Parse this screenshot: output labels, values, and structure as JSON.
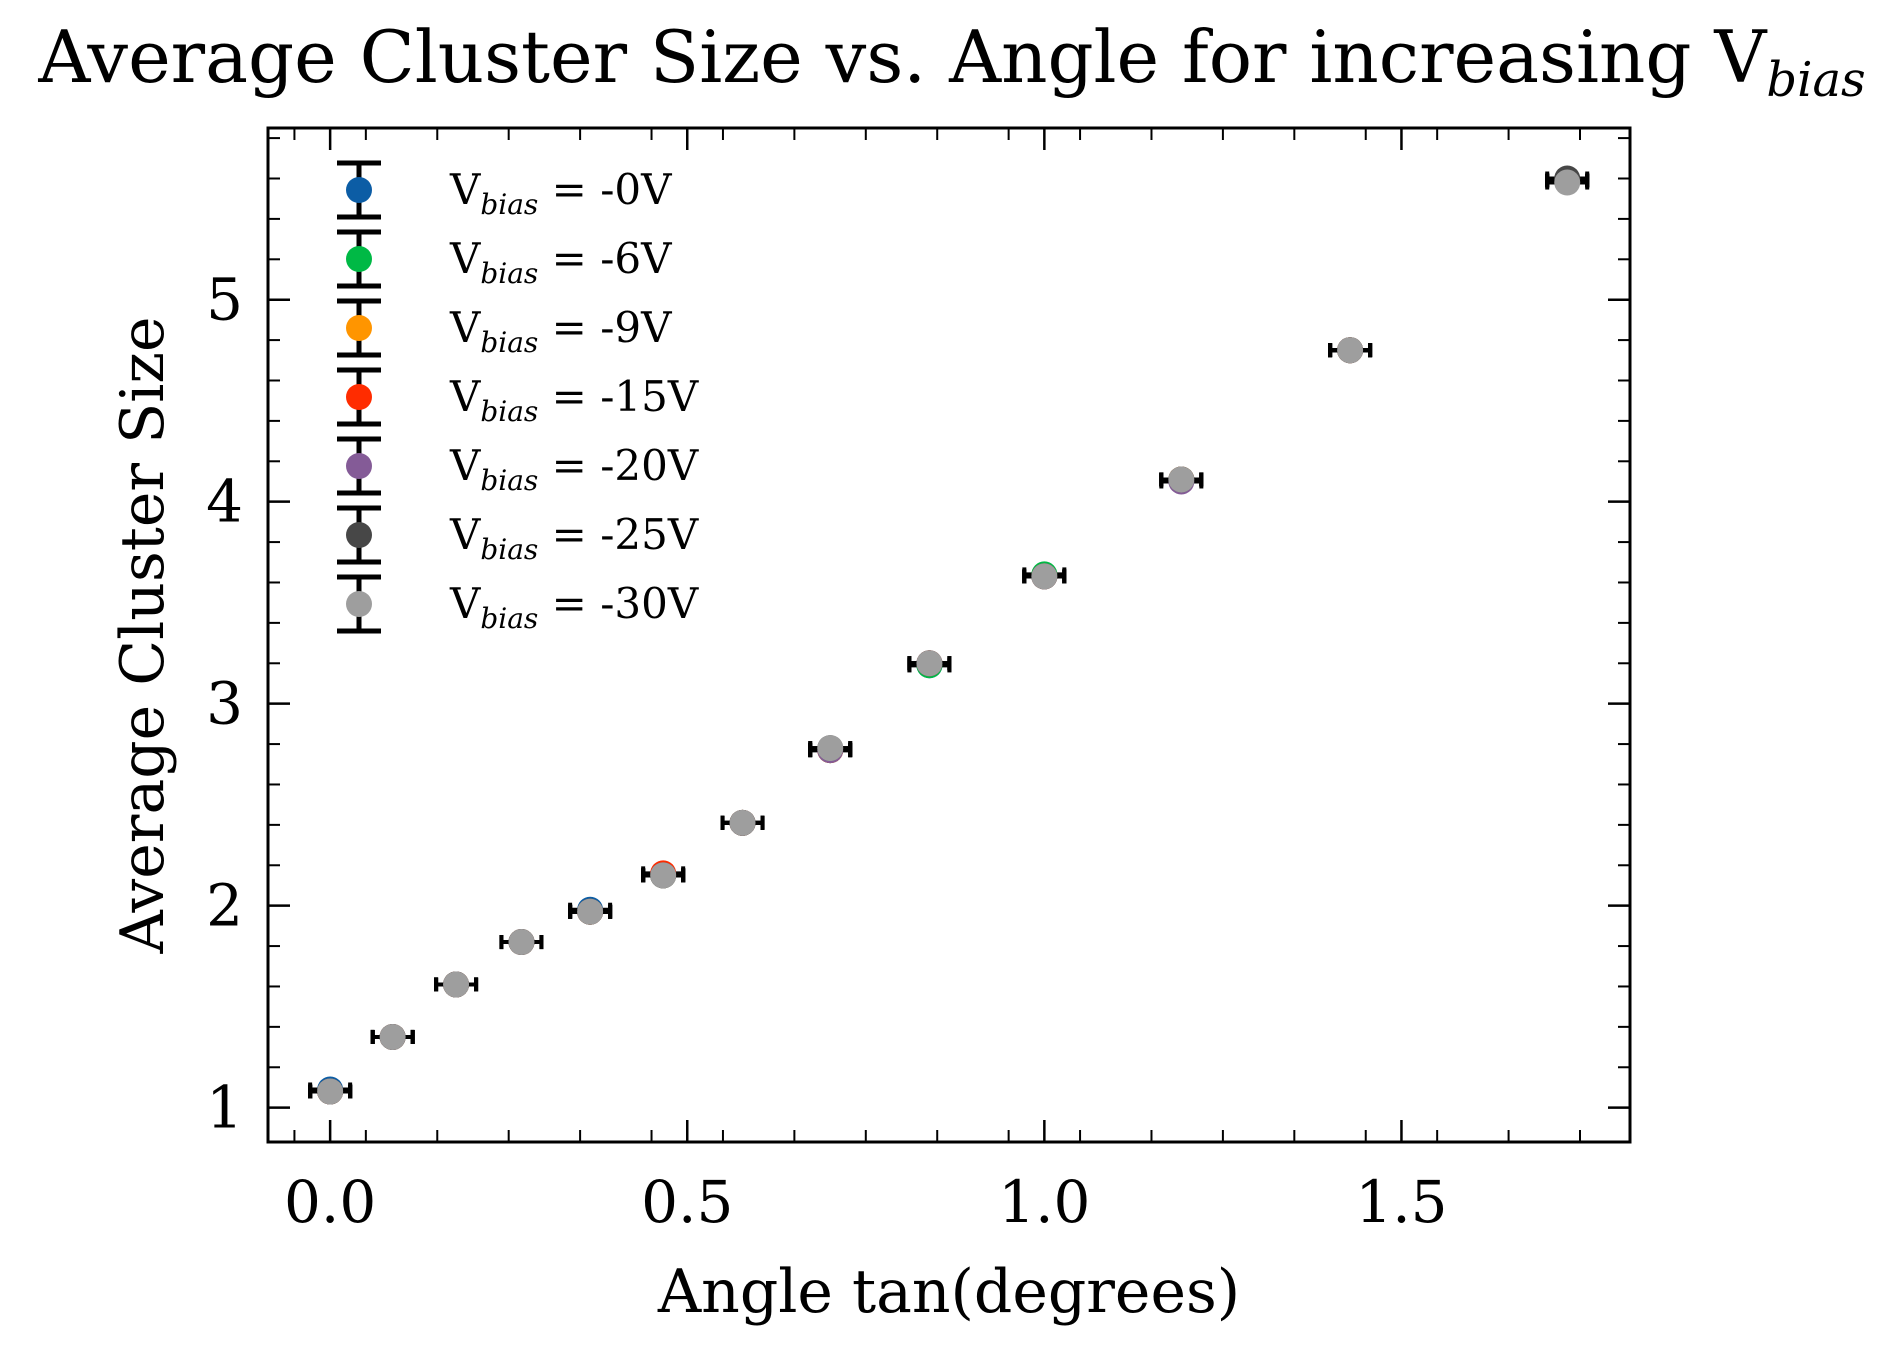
{
  "chart_data": {
    "type": "scatter",
    "title": {
      "main": "Average Cluster Size vs. Angle for increasing V",
      "sub": "bias"
    },
    "xlabel": "Angle tan(degrees)",
    "ylabel": "Average Cluster Size",
    "xlim": [
      -0.087,
      1.82
    ],
    "ylim": [
      0.83,
      5.85
    ],
    "xticks": [
      0.0,
      0.5,
      1.0,
      1.5
    ],
    "xtick_labels": [
      "0.0",
      "0.5",
      "1.0",
      "1.5"
    ],
    "yticks": [
      1,
      2,
      3,
      4,
      5
    ],
    "ytick_labels": [
      "1",
      "2",
      "3",
      "4",
      "5"
    ],
    "legend_position": "top-left",
    "grid": false,
    "x": [
      0.0,
      0.0875,
      0.1763,
      0.2679,
      0.364,
      0.4663,
      0.5774,
      0.7002,
      0.8391,
      1.0,
      1.1918,
      1.4281,
      1.7321
    ],
    "series": [
      {
        "name": "V",
        "sub": "bias",
        "suffix": " = -0V",
        "color": "#0C5DA5",
        "values": [
          1.09,
          1.35,
          1.61,
          1.82,
          1.98,
          2.15,
          2.41,
          2.77,
          3.19,
          3.63,
          4.11,
          4.75,
          5.59
        ]
      },
      {
        "name": "V",
        "sub": "bias",
        "suffix": " = -6V",
        "color": "#00B945",
        "values": [
          1.08,
          1.35,
          1.61,
          1.82,
          1.97,
          2.15,
          2.41,
          2.77,
          3.19,
          3.64,
          4.11,
          4.75,
          5.59
        ]
      },
      {
        "name": "V",
        "sub": "bias",
        "suffix": " = -9V",
        "color": "#FF9500",
        "values": [
          1.08,
          1.35,
          1.61,
          1.82,
          1.97,
          2.15,
          2.41,
          2.77,
          3.2,
          3.63,
          4.11,
          4.75,
          5.59
        ]
      },
      {
        "name": "V",
        "sub": "bias",
        "suffix": " = -15V",
        "color": "#FF2C00",
        "values": [
          1.08,
          1.35,
          1.61,
          1.82,
          1.97,
          2.16,
          2.41,
          2.77,
          3.2,
          3.63,
          4.11,
          4.75,
          5.59
        ]
      },
      {
        "name": "V",
        "sub": "bias",
        "suffix": " = -20V",
        "color": "#845B97",
        "values": [
          1.08,
          1.35,
          1.61,
          1.82,
          1.97,
          2.15,
          2.41,
          2.77,
          3.2,
          3.63,
          4.1,
          4.75,
          5.59
        ]
      },
      {
        "name": "V",
        "sub": "bias",
        "suffix": " = -25V",
        "color": "#474747",
        "values": [
          1.08,
          1.35,
          1.61,
          1.82,
          1.97,
          2.15,
          2.41,
          2.78,
          3.2,
          3.63,
          4.11,
          4.75,
          5.6
        ]
      },
      {
        "name": "V",
        "sub": "bias",
        "suffix": " = -30V",
        "color": "#9E9E9E",
        "values": [
          1.08,
          1.35,
          1.61,
          1.82,
          1.97,
          2.15,
          2.41,
          2.78,
          3.2,
          3.63,
          4.11,
          4.75,
          5.58
        ]
      }
    ]
  }
}
